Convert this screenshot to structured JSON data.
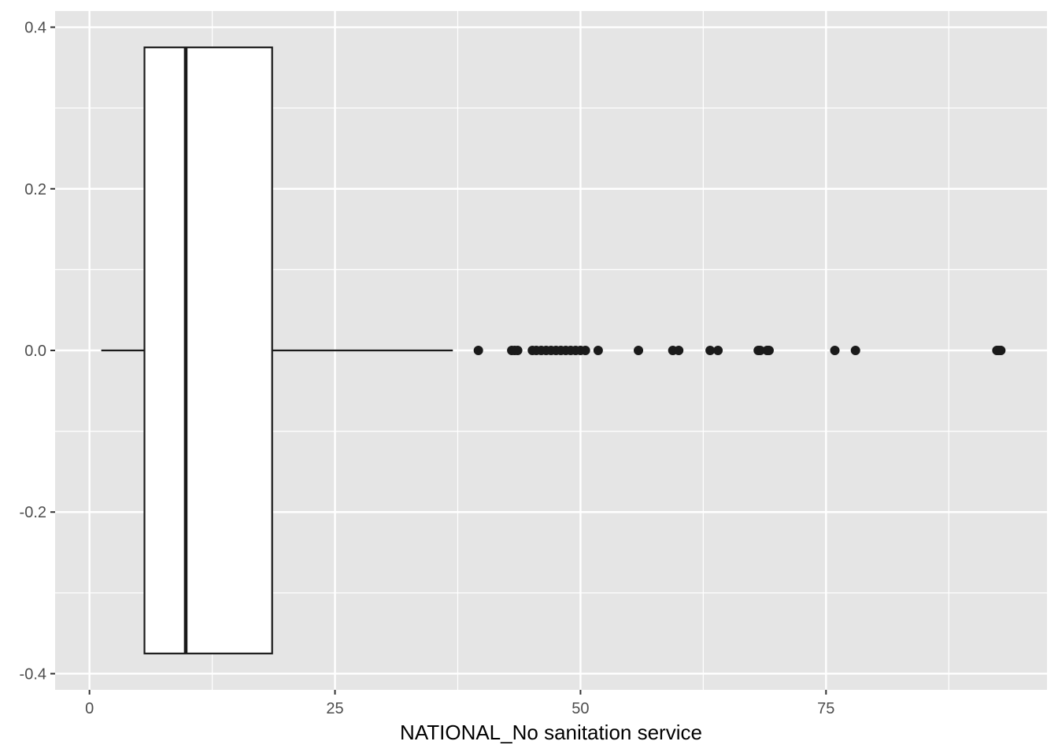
{
  "chart_data": {
    "type": "boxplot",
    "title": "",
    "xlabel": "NATIONAL_No sanitation service",
    "ylabel": "",
    "xlim": [
      -3.5,
      97.5
    ],
    "ylim": [
      -0.42,
      0.42
    ],
    "x_ticks": [
      0,
      25,
      50,
      75
    ],
    "x_tick_labels": [
      "0",
      "25",
      "50",
      "75"
    ],
    "y_ticks": [
      -0.4,
      -0.2,
      0.0,
      0.2,
      0.4
    ],
    "y_tick_labels": [
      "-0.4",
      "-0.2",
      "0.0",
      "0.2",
      "0.4"
    ],
    "grid": true,
    "orientation": "horizontal",
    "box": {
      "whisker_low": 1.2,
      "q1": 5.6,
      "median": 9.8,
      "q3": 18.6,
      "whisker_high": 37.0,
      "y_center": 0.0,
      "y_half_width": 0.375
    },
    "outliers": [
      39.6,
      43.0,
      43.3,
      43.6,
      45.1,
      45.5,
      46.0,
      46.5,
      47.0,
      47.5,
      48.0,
      48.5,
      49.0,
      49.5,
      50.0,
      50.5,
      51.8,
      55.9,
      59.4,
      60.0,
      63.2,
      64.0,
      68.1,
      68.3,
      69.0,
      69.2,
      75.9,
      78.0,
      92.4,
      92.6,
      92.8
    ],
    "colors": {
      "panel": "#e5e5e5",
      "grid": "#ffffff",
      "box_fill": "#ffffff",
      "line": "#1a1a1a",
      "outlier": "#1a1a1a",
      "tick": "#333333"
    }
  }
}
